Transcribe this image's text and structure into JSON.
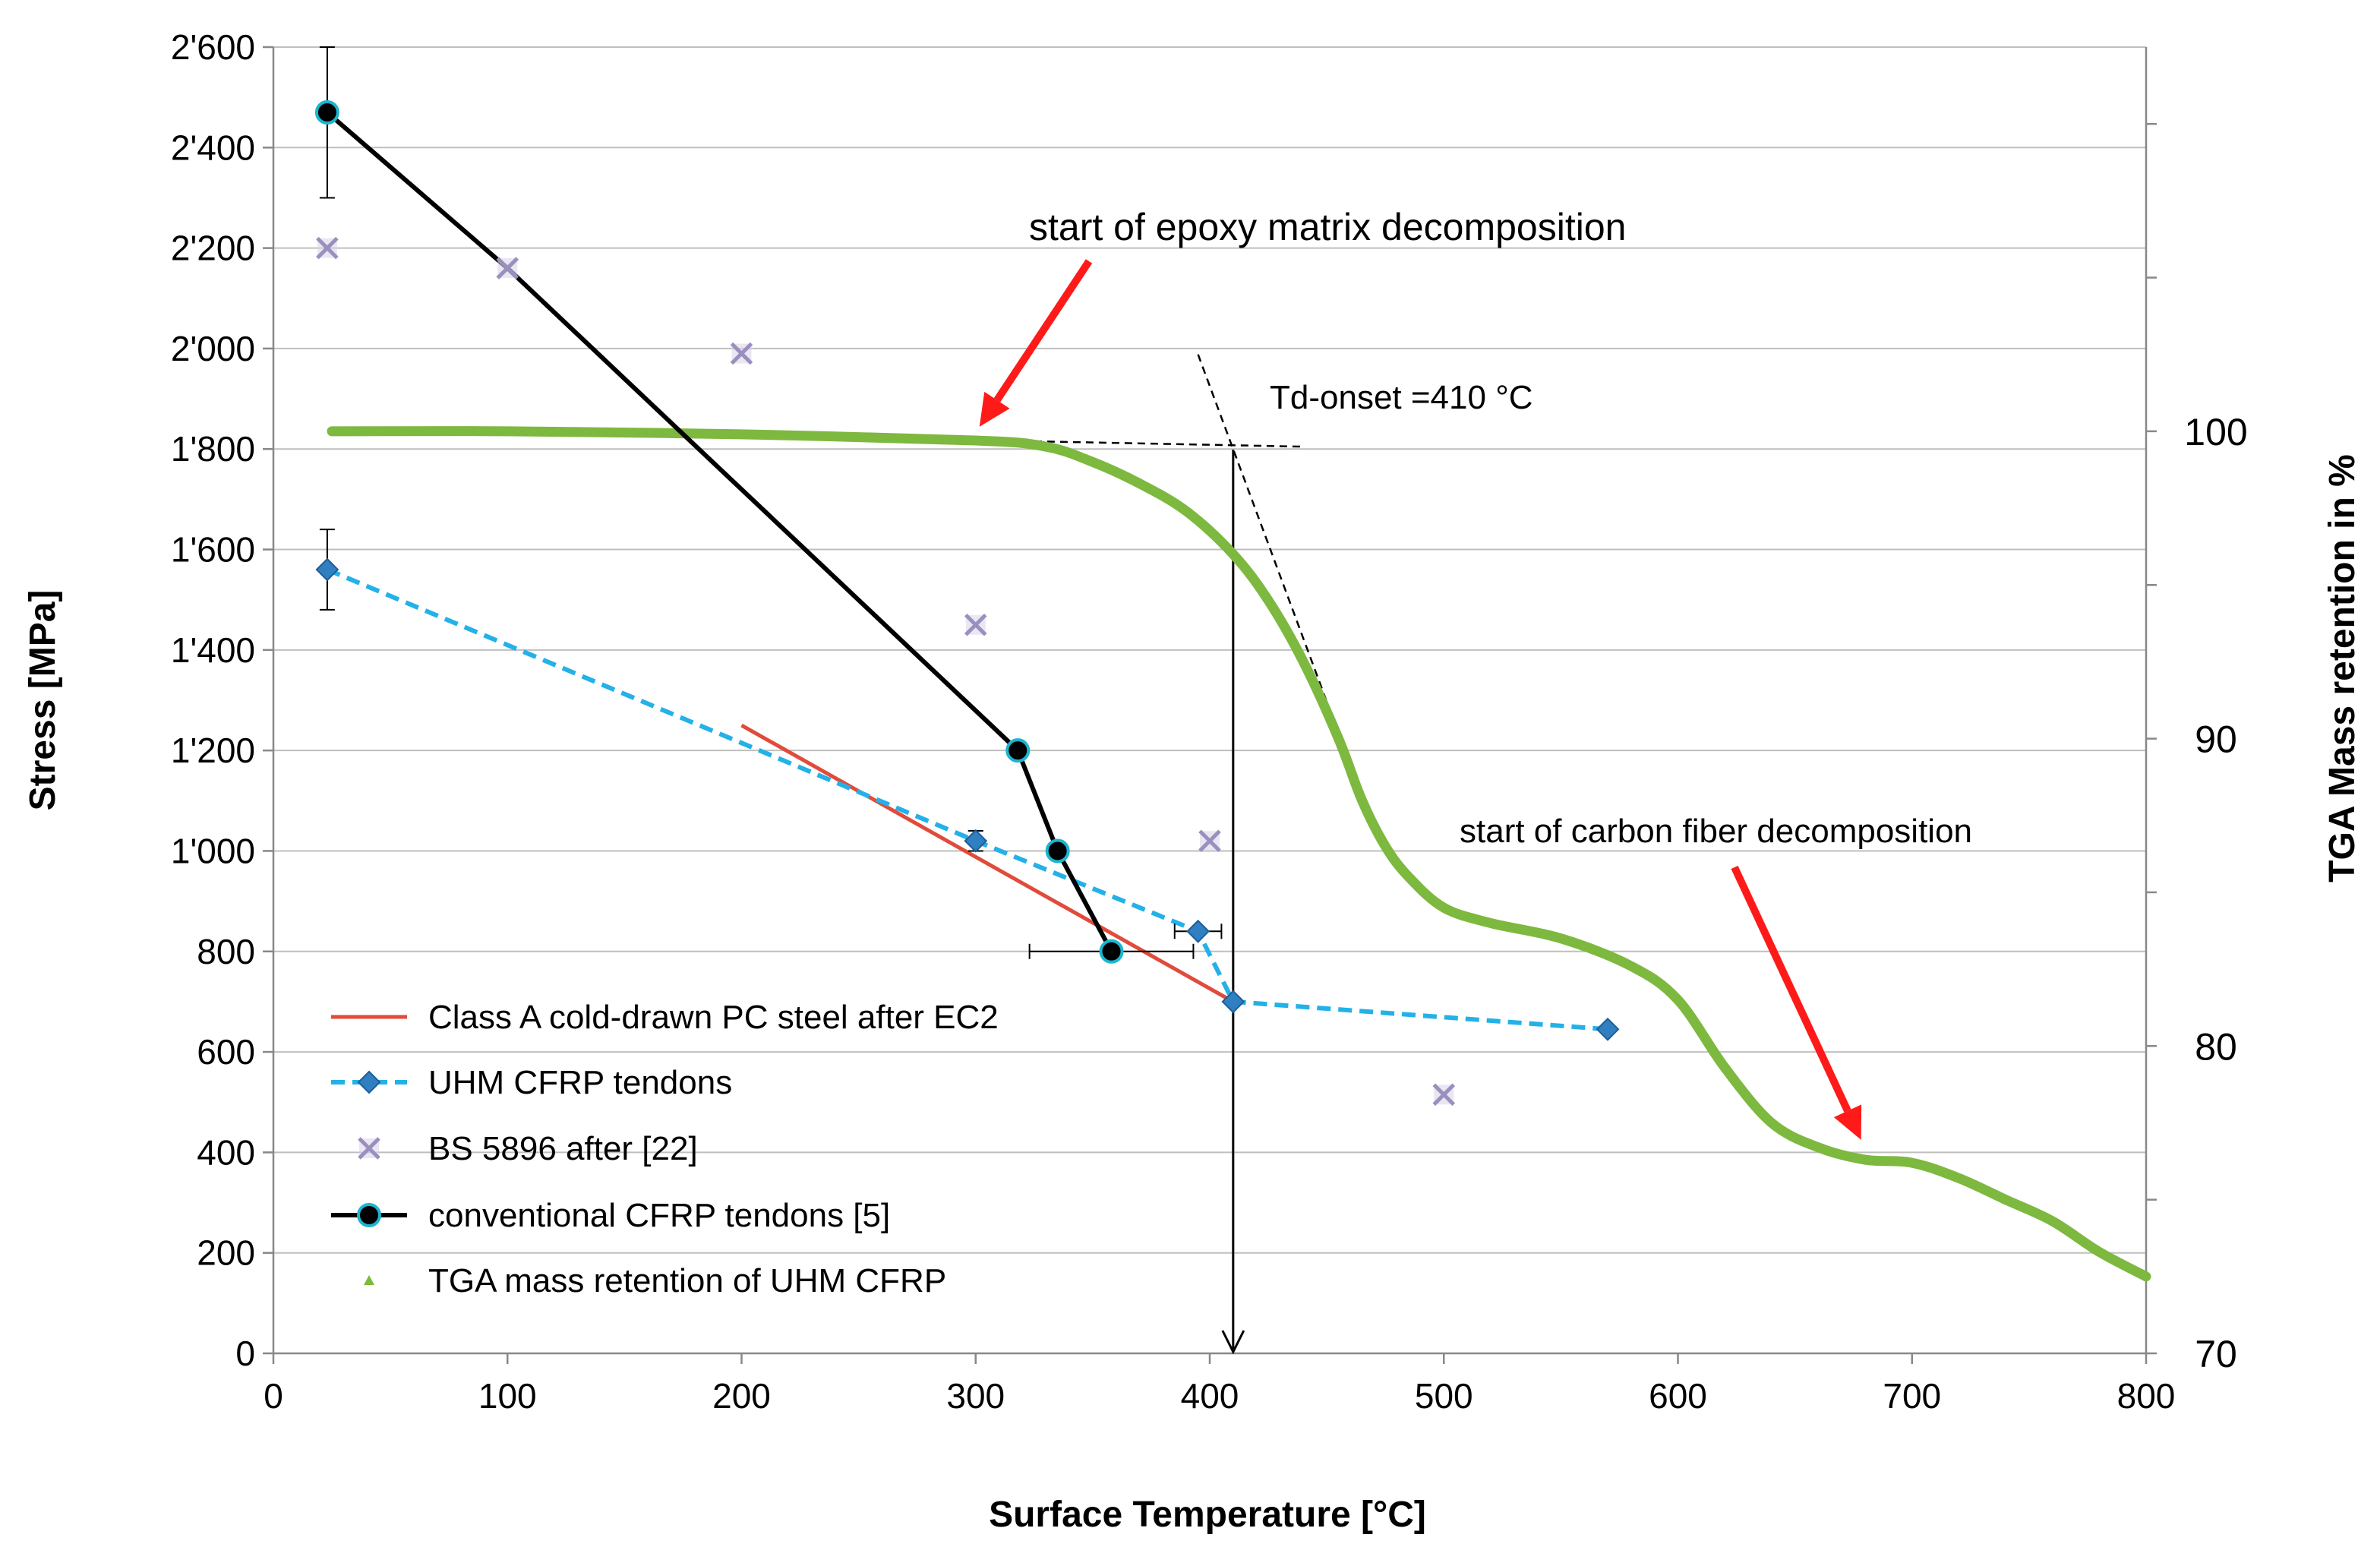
{
  "chart_data": {
    "type": "line",
    "title": "",
    "xlabel": "Surface Temperature [°C]",
    "ylabel": "Stress [MPa]",
    "y2label": "TGA Mass retention in %",
    "xlim": [
      0,
      800
    ],
    "ylim": [
      0,
      2600
    ],
    "y2lim": [
      70,
      112.5
    ],
    "x_ticks": [
      0,
      100,
      200,
      300,
      400,
      500,
      600,
      700,
      800
    ],
    "x_tick_labels": [
      "0",
      "100",
      "200",
      "300",
      "400",
      "500",
      "600",
      "700",
      "800"
    ],
    "y_ticks": [
      0,
      200,
      400,
      600,
      800,
      1000,
      1200,
      1400,
      1600,
      1800,
      2000,
      2200,
      2400,
      2600
    ],
    "y_tick_labels": [
      "0",
      "200",
      "400",
      "600",
      "800",
      "1'000",
      "1'200",
      "1'400",
      "1'600",
      "1'800",
      "2'000",
      "2'200",
      "2'400",
      "2'600"
    ],
    "y2_ticks": [
      70,
      80,
      90,
      100
    ],
    "y2_tick_labels": [
      "70",
      "80",
      "90",
      "100"
    ],
    "y2_minor_ticks": [
      75,
      85,
      95,
      105,
      110
    ],
    "grid": true,
    "legend_position": "bottom-left",
    "series": [
      {
        "name": "Class A cold-drawn PC steel after EC2",
        "kind": "line",
        "color": "#e04b3c",
        "x": [
          200,
          410
        ],
        "y": [
          1250,
          700
        ]
      },
      {
        "name": "UHM CFRP tendons",
        "kind": "dashed-line-diamond",
        "color": "#23b1e8",
        "marker_color": "#2f7fc1",
        "x": [
          23,
          300,
          395,
          410,
          570
        ],
        "y": [
          1560,
          1020,
          840,
          700,
          645
        ]
      },
      {
        "name": "BS 5896 after [22]",
        "kind": "x-markers",
        "color": "#9a8fbf",
        "x": [
          23,
          100,
          200,
          300,
          400,
          500
        ],
        "y": [
          2200,
          2160,
          1990,
          1450,
          1020,
          515
        ]
      },
      {
        "name": "conventional CFRP tendons [5]",
        "kind": "line-circle",
        "color": "#000000",
        "marker_edge": "#1cb5cf",
        "x": [
          23,
          100,
          318,
          335,
          358
        ],
        "y": [
          2470,
          2160,
          1200,
          1000,
          800
        ],
        "markers": [
          true,
          false,
          true,
          true,
          true
        ]
      },
      {
        "name": "TGA mass retention of UHM CFRP",
        "kind": "thick-curve",
        "axis": "y2",
        "color": "#7db83f",
        "x": [
          25,
          100,
          200,
          300,
          330,
          350,
          370,
          390,
          410,
          425,
          440,
          455,
          465,
          475,
          485,
          500,
          520,
          550,
          580,
          600,
          620,
          640,
          660,
          680,
          700,
          720,
          740,
          760,
          780,
          800
        ],
        "y": [
          100,
          100,
          99.9,
          99.7,
          99.5,
          99,
          98.3,
          97.4,
          96,
          94.5,
          92.5,
          90,
          88,
          86.5,
          85.5,
          84.5,
          84,
          83.5,
          82.6,
          81.5,
          79.3,
          77.5,
          76.7,
          76.3,
          76.2,
          75.7,
          75,
          74.3,
          73.3,
          72.5
        ]
      }
    ],
    "error_bars": [
      {
        "series": "conventional CFRP tendons [5]",
        "orientation": "vertical",
        "x": 23,
        "from": 2300,
        "to": 2600
      },
      {
        "series": "UHM CFRP tendons",
        "orientation": "vertical",
        "x": 23,
        "from": 1480,
        "to": 1640
      },
      {
        "series": "UHM CFRP tendons",
        "orientation": "vertical",
        "x": 300,
        "from": 1000,
        "to": 1040
      },
      {
        "series": "UHM CFRP tendons",
        "orientation": "horizontal",
        "y": 840,
        "from": 385,
        "to": 405
      },
      {
        "series": "conventional CFRP tendons [5]",
        "orientation": "horizontal",
        "y": 800,
        "from": 323,
        "to": 393
      }
    ],
    "annotations": {
      "epoxy_label": "start of epoxy matrix decomposition",
      "carbon_label": "start of carbon fiber decomposition",
      "td_onset_label": "Td-onset =410 °C"
    },
    "constructions": {
      "td_onset_x": 410,
      "tangent_plateau": {
        "x": [
          110,
          440
        ],
        "y2": [
          100,
          99.5
        ]
      },
      "tangent_slope": {
        "x": [
          395,
          450
        ],
        "y2": [
          102.5,
          91.2
        ]
      },
      "epoxy_arrow_target": {
        "x": 300,
        "y2": 100
      },
      "carbon_arrow_target": {
        "x": 675,
        "y2": 76.7
      }
    },
    "colors": {
      "arrow_red": "#ff1a1a",
      "grid": "#bfbfbf",
      "axis": "#888888"
    }
  }
}
